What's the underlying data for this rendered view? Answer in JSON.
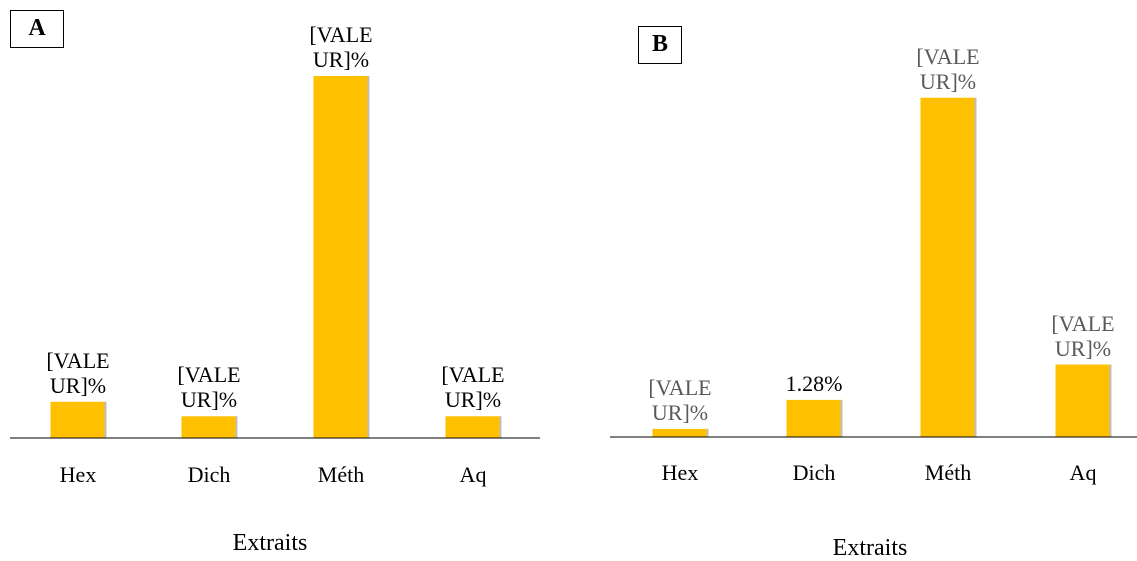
{
  "chart_data": [
    {
      "type": "bar",
      "title": "A",
      "x_label": "Extraits",
      "categories": [
        "Hex",
        "Dich",
        "Méth",
        "Aq"
      ],
      "values": [
        1.0,
        0.6,
        10.0,
        0.6
      ],
      "value_labels": [
        "[VALEUR]%",
        "[VALEUR]%",
        "[VALEUR]%",
        "[VALEUR]%"
      ],
      "label_colors": [
        "#000000",
        "#000000",
        "#000000",
        "#000000"
      ],
      "color": "#ffc000",
      "ylim": [
        0,
        10
      ]
    },
    {
      "type": "bar",
      "title": "B",
      "x_label": "Extraits",
      "categories": [
        "Hex",
        "Dich",
        "Méth",
        "Aq"
      ],
      "values": [
        0.28,
        1.28,
        11.7,
        2.5
      ],
      "value_labels": [
        "[VALEUR]%",
        "1.28%",
        "[VALEUR]%",
        "[VALEUR]%"
      ],
      "label_colors": [
        "#595959",
        "#000000",
        "#595959",
        "#595959"
      ],
      "color": "#ffc000",
      "ylim": [
        0,
        12
      ]
    }
  ]
}
